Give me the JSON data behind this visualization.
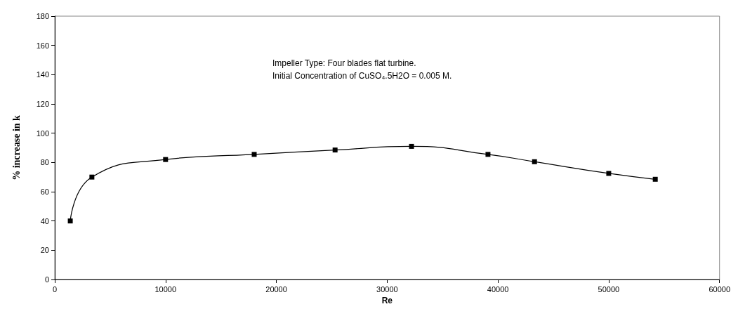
{
  "chart_data": {
    "type": "line",
    "xlabel": "Re",
    "ylabel": "% increase in k",
    "annotations": [
      "Impeller Type: Four blades flat turbine.",
      "Initial Concentration of CuSO₄.5H2O = 0.005 M."
    ],
    "x": [
      1400,
      3350,
      10000,
      18000,
      25300,
      32200,
      39100,
      43300,
      50000,
      54200
    ],
    "series": [
      {
        "color": "#000000",
        "values": [
          40,
          70,
          82,
          85.5,
          88.5,
          91,
          85.5,
          80.5,
          72.5,
          68.5
        ]
      }
    ],
    "xlim": [
      0,
      60000
    ],
    "xticks": [
      0,
      10000,
      20000,
      30000,
      40000,
      50000,
      60000
    ],
    "ylim": [
      0,
      180
    ],
    "yticks": [
      0,
      20,
      40,
      60,
      80,
      100,
      120,
      140,
      160,
      180
    ],
    "grid": false,
    "marker": "square",
    "line_style": "solid"
  }
}
